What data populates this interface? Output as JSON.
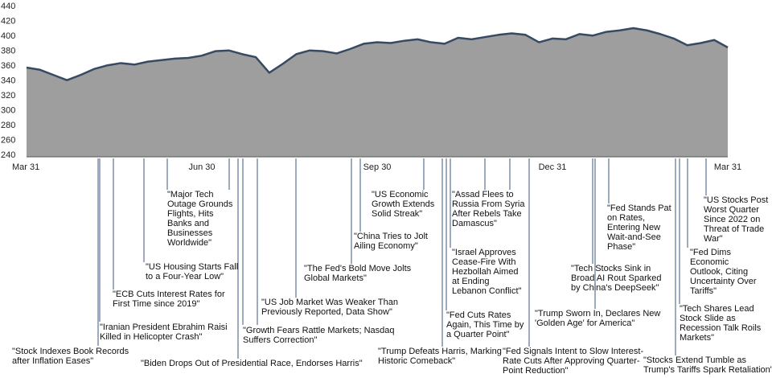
{
  "chart_data": {
    "type": "area",
    "categories": [
      "Mar 31",
      null,
      null,
      null,
      null,
      null,
      null,
      null,
      null,
      null,
      null,
      null,
      null,
      "Jun 30",
      null,
      null,
      null,
      null,
      null,
      null,
      null,
      null,
      null,
      null,
      null,
      null,
      "Sep 30",
      null,
      null,
      null,
      null,
      null,
      null,
      null,
      null,
      null,
      null,
      null,
      null,
      "Dec 31",
      null,
      null,
      null,
      null,
      null,
      null,
      null,
      null,
      null,
      null,
      null,
      null,
      "Mar 31"
    ],
    "values": [
      360,
      357,
      350,
      343,
      350,
      358,
      363,
      366,
      364,
      368,
      370,
      372,
      373,
      376,
      382,
      383,
      378,
      374,
      353,
      365,
      378,
      383,
      382,
      379,
      385,
      392,
      394,
      393,
      396,
      398,
      394,
      392,
      400,
      398,
      401,
      404,
      406,
      404,
      394,
      399,
      398,
      405,
      403,
      408,
      410,
      413,
      410,
      405,
      399,
      390,
      393,
      397,
      387
    ],
    "color": "#9e9e9e",
    "line_color": "#364a63",
    "ylim": [
      240,
      440
    ],
    "yticks": [
      240,
      260,
      280,
      300,
      320,
      340,
      360,
      380,
      400,
      420,
      440
    ],
    "annotations": [
      {
        "lines": [
          "\"Stock Indexes Book Records",
          "after Inflation Eases\""
        ]
      },
      {
        "lines": [
          "\"Iranian President Ebrahim Raisi",
          "Killed in Helicopter Crash\""
        ]
      },
      {
        "lines": [
          "\"ECB Cuts Interest Rates for",
          "First Time since 2019\""
        ]
      },
      {
        "lines": [
          "\"US Housing Starts Fall",
          "to a Four-Year Low\""
        ]
      },
      {
        "lines": [
          "\"Major Tech",
          "Outage Grounds",
          "Flights, Hits",
          "Banks and",
          "Businesses",
          "Worldwide\""
        ]
      },
      {
        "lines": [
          "\"Biden Drops Out of Presidential Race, Endorses Harris\""
        ]
      },
      {
        "lines": [
          "\"Growth Fears Rattle Markets; Nasdaq",
          "Suffers Correction\""
        ]
      },
      {
        "lines": [
          "\"US Job Market Was Weaker Than",
          "Previously Reported, Data Show\""
        ]
      },
      {
        "lines": [
          "\"The Fed's Bold Move Jolts",
          "Global Markets\""
        ]
      },
      {
        "lines": [
          "\"China Tries to Jolt",
          "Ailing Economy\""
        ]
      },
      {
        "lines": [
          "\"US Economic",
          "Growth Extends",
          "Solid Streak\""
        ]
      },
      {
        "lines": [
          "\"Trump Defeats Harris, Marking",
          "Historic Comeback\""
        ]
      },
      {
        "lines": [
          "\"Fed Cuts Rates",
          "Again, This Time by",
          "a Quarter Point\""
        ]
      },
      {
        "lines": [
          "\"Israel Approves",
          "Cease-Fire With",
          "Hezbollah Aimed",
          "at Ending",
          "Lebanon Conflict\""
        ]
      },
      {
        "lines": [
          "\"Assad Flees to",
          "Russia From Syria",
          "After Rebels Take",
          "Damascus\""
        ]
      },
      {
        "lines": [
          "\"Fed Signals Intent to Slow Interest-",
          "Rate Cuts After Approving Quarter-",
          "Point Reduction\""
        ]
      },
      {
        "lines": [
          "\"Trump Sworn In, Declares New",
          "'Golden Age' for America\""
        ]
      },
      {
        "lines": [
          "\"Tech Stocks Sink in",
          "Broad AI Rout Sparked",
          "by China's DeepSeek\""
        ]
      },
      {
        "lines": [
          "\"Fed Stands Pat",
          "on Rates,",
          "Entering New",
          "Wait-and-See",
          "Phase\""
        ]
      },
      {
        "lines": [
          "\"Stocks Extend Tumble as",
          "Trump's Tariffs Spark Retaliation\""
        ]
      },
      {
        "lines": [
          "\"Tech Shares Lead",
          "Stock Slide as",
          "Recession Talk Roils",
          "Markets\""
        ]
      },
      {
        "lines": [
          "\"Fed Dims",
          "Economic",
          "Outlook, Citing",
          "Uncertainty Over",
          "Tariffs\""
        ]
      },
      {
        "lines": [
          "\"US Stocks Post",
          "Worst Quarter",
          "Since 2022 on",
          "Threat of Trade",
          "War\""
        ]
      }
    ]
  }
}
